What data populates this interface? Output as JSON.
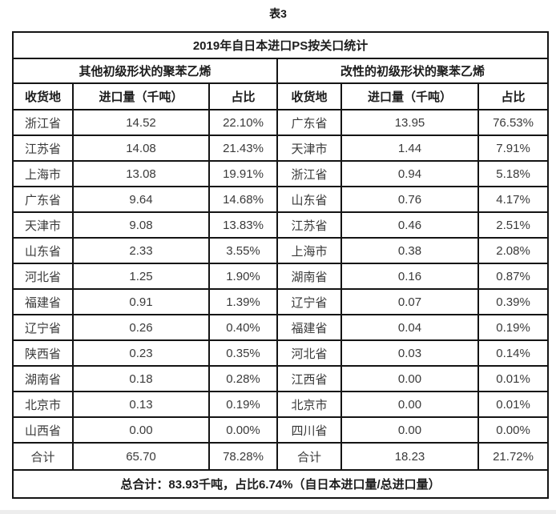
{
  "page": {
    "title": "表3"
  },
  "table": {
    "title": "2019年自日本进口PS按关口统计",
    "groups": {
      "left": "其他初级形状的聚苯乙烯",
      "right": "改性的初级形状的聚苯乙烯"
    },
    "columns": {
      "region": "收货地",
      "volume": "进口量（千吨）",
      "share": "占比"
    },
    "left_rows": [
      {
        "region": "浙江省",
        "volume": "14.52",
        "share": "22.10%"
      },
      {
        "region": "江苏省",
        "volume": "14.08",
        "share": "21.43%"
      },
      {
        "region": "上海市",
        "volume": "13.08",
        "share": "19.91%"
      },
      {
        "region": "广东省",
        "volume": "9.64",
        "share": "14.68%"
      },
      {
        "region": "天津市",
        "volume": "9.08",
        "share": "13.83%"
      },
      {
        "region": "山东省",
        "volume": "2.33",
        "share": "3.55%"
      },
      {
        "region": "河北省",
        "volume": "1.25",
        "share": "1.90%"
      },
      {
        "region": "福建省",
        "volume": "0.91",
        "share": "1.39%"
      },
      {
        "region": "辽宁省",
        "volume": "0.26",
        "share": "0.40%"
      },
      {
        "region": "陕西省",
        "volume": "0.23",
        "share": "0.35%"
      },
      {
        "region": "湖南省",
        "volume": "0.18",
        "share": "0.28%"
      },
      {
        "region": "北京市",
        "volume": "0.13",
        "share": "0.19%"
      },
      {
        "region": "山西省",
        "volume": "0.00",
        "share": "0.00%"
      }
    ],
    "right_rows": [
      {
        "region": "广东省",
        "volume": "13.95",
        "share": "76.53%"
      },
      {
        "region": "天津市",
        "volume": "1.44",
        "share": "7.91%"
      },
      {
        "region": "浙江省",
        "volume": "0.94",
        "share": "5.18%"
      },
      {
        "region": "山东省",
        "volume": "0.76",
        "share": "4.17%"
      },
      {
        "region": "江苏省",
        "volume": "0.46",
        "share": "2.51%"
      },
      {
        "region": "上海市",
        "volume": "0.38",
        "share": "2.08%"
      },
      {
        "region": "湖南省",
        "volume": "0.16",
        "share": "0.87%"
      },
      {
        "region": "辽宁省",
        "volume": "0.07",
        "share": "0.39%"
      },
      {
        "region": "福建省",
        "volume": "0.04",
        "share": "0.19%"
      },
      {
        "region": "河北省",
        "volume": "0.03",
        "share": "0.14%"
      },
      {
        "region": "江西省",
        "volume": "0.00",
        "share": "0.01%"
      },
      {
        "region": "北京市",
        "volume": "0.00",
        "share": "0.01%"
      },
      {
        "region": "四川省",
        "volume": "0.00",
        "share": "0.00%"
      }
    ],
    "totals": {
      "left": {
        "label": "合计",
        "volume": "65.70",
        "share": "78.28%"
      },
      "right": {
        "label": "合计",
        "volume": "18.23",
        "share": "21.72%"
      }
    },
    "grand_total_note": "总合计：83.93千吨，占比6.74%（自日本进口量/总进口量）"
  },
  "colors": {
    "border": "#141414",
    "text": "#3a3a3a",
    "header_text": "#1c1c1c",
    "background": "#ffffff"
  }
}
